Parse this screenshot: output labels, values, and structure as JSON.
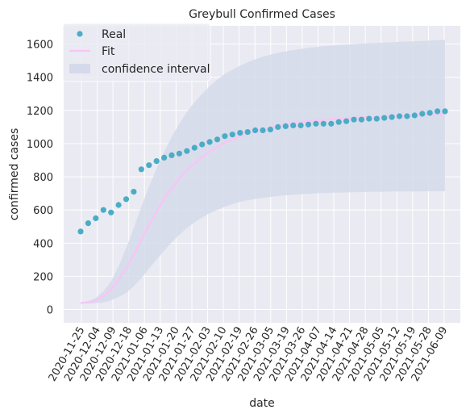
{
  "chart_data": {
    "type": "scatter",
    "title": "Greybull Confirmed Cases",
    "xlabel": "date",
    "ylabel": "confirmed cases",
    "ylim": [
      -80,
      1710
    ],
    "y_ticks": [
      0,
      200,
      400,
      600,
      800,
      1000,
      1200,
      1400,
      1600
    ],
    "x_tick_labels": [
      "2020-11-25",
      "2020-12-04",
      "2020-12-09",
      "2020-12-18",
      "2021-01-06",
      "2021-01-13",
      "2021-01-20",
      "2021-01-27",
      "2021-02-03",
      "2021-02-10",
      "2021-02-19",
      "2021-02-26",
      "2021-03-05",
      "2021-03-19",
      "2021-03-26",
      "2021-04-07",
      "2021-04-14",
      "2021-04-21",
      "2021-04-28",
      "2021-05-05",
      "2021-05-12",
      "2021-05-19",
      "2021-05-28",
      "2021-06-09"
    ],
    "grid": true,
    "legend_position": "top-left",
    "colors": {
      "background": "#eaeaf2",
      "grid": "#ffffff",
      "real": "#4bacc6",
      "fit": "#f7c6f5",
      "confidence": "#d5daea"
    },
    "series": [
      {
        "name": "Real",
        "kind": "scatter",
        "values": [
          470,
          520,
          550,
          600,
          585,
          630,
          665,
          710,
          845,
          870,
          895,
          915,
          930,
          940,
          955,
          975,
          995,
          1010,
          1025,
          1045,
          1055,
          1065,
          1070,
          1080,
          1080,
          1085,
          1100,
          1105,
          1110,
          1110,
          1115,
          1120,
          1120,
          1120,
          1130,
          1135,
          1145,
          1145,
          1150,
          1150,
          1155,
          1160,
          1165,
          1165,
          1170,
          1180,
          1185,
          1195,
          1195
        ]
      },
      {
        "name": "Fit",
        "kind": "line",
        "values": [
          38,
          45,
          55,
          80,
          120,
          180,
          250,
          330,
          420,
          510,
          590,
          670,
          730,
          790,
          840,
          880,
          920,
          950,
          980,
          1005,
          1025,
          1045,
          1060,
          1075,
          1085,
          1095,
          1105,
          1115,
          1125,
          1130,
          1135,
          1140,
          1145,
          1148,
          1150,
          1152,
          1155,
          1158,
          1160,
          1162,
          1164,
          1166,
          1168,
          1170,
          1172,
          1174,
          1176,
          1178,
          1180
        ]
      },
      {
        "name": "confidence interval",
        "kind": "band",
        "lower": [
          35,
          36,
          38,
          42,
          55,
          75,
          100,
          140,
          190,
          245,
          300,
          355,
          405,
          450,
          490,
          525,
          555,
          580,
          600,
          620,
          635,
          648,
          658,
          666,
          673,
          679,
          684,
          688,
          692,
          695,
          698,
          700,
          702,
          704,
          705,
          706,
          707,
          708,
          709,
          710,
          710,
          711,
          711,
          712,
          712,
          712,
          713,
          713,
          713
        ],
        "upper": [
          38,
          50,
          70,
          110,
          170,
          260,
          370,
          490,
          620,
          740,
          850,
          950,
          1040,
          1120,
          1190,
          1250,
          1300,
          1345,
          1385,
          1420,
          1445,
          1470,
          1490,
          1508,
          1523,
          1536,
          1547,
          1556,
          1564,
          1571,
          1577,
          1582,
          1587,
          1591,
          1594,
          1597,
          1600,
          1603,
          1605,
          1607,
          1609,
          1611,
          1613,
          1615,
          1617,
          1619,
          1621,
          1623,
          1625
        ]
      }
    ]
  }
}
